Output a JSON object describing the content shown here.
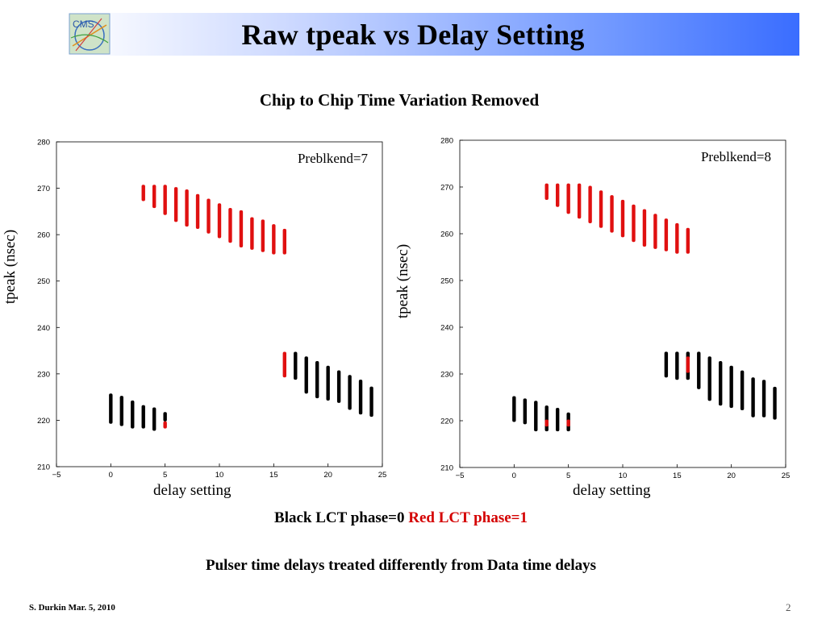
{
  "slide": {
    "title": "Raw tpeak vs Delay Setting",
    "subtitle": "Chip to Chip Time Variation Removed",
    "logo_text": "CMS",
    "legend_black": "Black LCT phase=0",
    "legend_red": "Red LCT phase=1",
    "footnote": "Pulser time delays treated differently from Data time delays",
    "author": "S. Durkin Mar. 5, 2010",
    "page_number": "2"
  },
  "colors": {
    "black_points": "#000000",
    "red_points": "#e01010",
    "title_bar_end": "#3a6dff"
  },
  "chart_data": [
    {
      "type": "scatter",
      "title": "",
      "annotation": "Preblkend=7",
      "xlabel": "delay setting",
      "ylabel": "tpeak (nsec)",
      "xlim": [
        -5,
        25
      ],
      "ylim": [
        210,
        280
      ],
      "xticks": [
        -5,
        0,
        5,
        10,
        15,
        20,
        25
      ],
      "yticks": [
        210,
        220,
        230,
        240,
        250,
        260,
        270,
        280
      ],
      "grid": false,
      "series": [
        {
          "color": "black",
          "points": [
            {
              "x": 0,
              "ymin": 219.5,
              "ymax": 225.5
            },
            {
              "x": 1,
              "ymin": 219,
              "ymax": 225
            },
            {
              "x": 2,
              "ymin": 218.5,
              "ymax": 224
            },
            {
              "x": 3,
              "ymin": 218.5,
              "ymax": 223
            },
            {
              "x": 4,
              "ymin": 218,
              "ymax": 222.5
            },
            {
              "x": 5,
              "ymin": 220,
              "ymax": 221.5
            },
            {
              "x": 17,
              "ymin": 229,
              "ymax": 234.5
            },
            {
              "x": 18,
              "ymin": 226,
              "ymax": 233.5
            },
            {
              "x": 19,
              "ymin": 225,
              "ymax": 232.5
            },
            {
              "x": 20,
              "ymin": 224.5,
              "ymax": 231.5
            },
            {
              "x": 21,
              "ymin": 224,
              "ymax": 230.5
            },
            {
              "x": 22,
              "ymin": 222.5,
              "ymax": 229.5
            },
            {
              "x": 23,
              "ymin": 221.5,
              "ymax": 228.5
            },
            {
              "x": 24,
              "ymin": 221,
              "ymax": 227
            }
          ]
        },
        {
          "color": "red",
          "points": [
            {
              "x": 3,
              "ymin": 267.5,
              "ymax": 270.5
            },
            {
              "x": 4,
              "ymin": 266,
              "ymax": 270.5
            },
            {
              "x": 5,
              "ymin": 264.5,
              "ymax": 270.5
            },
            {
              "x": 6,
              "ymin": 263,
              "ymax": 270
            },
            {
              "x": 7,
              "ymin": 262,
              "ymax": 269.5
            },
            {
              "x": 8,
              "ymin": 261.5,
              "ymax": 268.5
            },
            {
              "x": 9,
              "ymin": 260.5,
              "ymax": 267.5
            },
            {
              "x": 10,
              "ymin": 259.5,
              "ymax": 266.5
            },
            {
              "x": 11,
              "ymin": 258.5,
              "ymax": 265.5
            },
            {
              "x": 12,
              "ymin": 257.5,
              "ymax": 265
            },
            {
              "x": 13,
              "ymin": 257,
              "ymax": 263.5
            },
            {
              "x": 14,
              "ymin": 256.5,
              "ymax": 263
            },
            {
              "x": 15,
              "ymin": 256,
              "ymax": 262
            },
            {
              "x": 16,
              "ymin": 256,
              "ymax": 261
            },
            {
              "x": 5,
              "ymin": 218.5,
              "ymax": 219.5
            },
            {
              "x": 16,
              "ymin": 229.5,
              "ymax": 234.5
            }
          ]
        }
      ]
    },
    {
      "type": "scatter",
      "title": "",
      "annotation": "Preblkend=8",
      "xlabel": "delay setting",
      "ylabel": "tpeak (nsec)",
      "xlim": [
        -5,
        25
      ],
      "ylim": [
        210,
        280
      ],
      "xticks": [
        -5,
        0,
        5,
        10,
        15,
        20,
        25
      ],
      "yticks": [
        210,
        220,
        230,
        240,
        250,
        260,
        270,
        280
      ],
      "grid": false,
      "series": [
        {
          "color": "black",
          "points": [
            {
              "x": 0,
              "ymin": 220,
              "ymax": 225
            },
            {
              "x": 1,
              "ymin": 219.5,
              "ymax": 224.5
            },
            {
              "x": 2,
              "ymin": 218,
              "ymax": 224
            },
            {
              "x": 3,
              "ymin": 218,
              "ymax": 223
            },
            {
              "x": 4,
              "ymin": 218,
              "ymax": 222.5
            },
            {
              "x": 5,
              "ymin": 218,
              "ymax": 221.5
            },
            {
              "x": 14,
              "ymin": 229.5,
              "ymax": 234.5
            },
            {
              "x": 15,
              "ymin": 229,
              "ymax": 234.5
            },
            {
              "x": 16,
              "ymin": 229,
              "ymax": 234.5
            },
            {
              "x": 17,
              "ymin": 227,
              "ymax": 234.5
            },
            {
              "x": 18,
              "ymin": 224.5,
              "ymax": 233.5
            },
            {
              "x": 19,
              "ymin": 223.5,
              "ymax": 232.5
            },
            {
              "x": 20,
              "ymin": 223,
              "ymax": 231.5
            },
            {
              "x": 21,
              "ymin": 222.5,
              "ymax": 230.5
            },
            {
              "x": 22,
              "ymin": 221,
              "ymax": 229
            },
            {
              "x": 23,
              "ymin": 221,
              "ymax": 228.5
            },
            {
              "x": 24,
              "ymin": 220.5,
              "ymax": 227
            }
          ]
        },
        {
          "color": "red",
          "points": [
            {
              "x": 3,
              "ymin": 267.5,
              "ymax": 270.5
            },
            {
              "x": 4,
              "ymin": 266,
              "ymax": 270.5
            },
            {
              "x": 5,
              "ymin": 264.5,
              "ymax": 270.5
            },
            {
              "x": 6,
              "ymin": 263.5,
              "ymax": 270.5
            },
            {
              "x": 7,
              "ymin": 262.5,
              "ymax": 270
            },
            {
              "x": 8,
              "ymin": 261.5,
              "ymax": 269
            },
            {
              "x": 9,
              "ymin": 260.5,
              "ymax": 268
            },
            {
              "x": 10,
              "ymin": 259.5,
              "ymax": 267
            },
            {
              "x": 11,
              "ymin": 258.5,
              "ymax": 266
            },
            {
              "x": 12,
              "ymin": 257.5,
              "ymax": 265
            },
            {
              "x": 13,
              "ymin": 257,
              "ymax": 264
            },
            {
              "x": 14,
              "ymin": 256.5,
              "ymax": 263
            },
            {
              "x": 15,
              "ymin": 256,
              "ymax": 262
            },
            {
              "x": 16,
              "ymin": 256,
              "ymax": 261
            },
            {
              "x": 3,
              "ymin": 219,
              "ymax": 220
            },
            {
              "x": 5,
              "ymin": 219,
              "ymax": 220
            },
            {
              "x": 16,
              "ymin": 230.5,
              "ymax": 233.5
            }
          ]
        }
      ]
    }
  ]
}
